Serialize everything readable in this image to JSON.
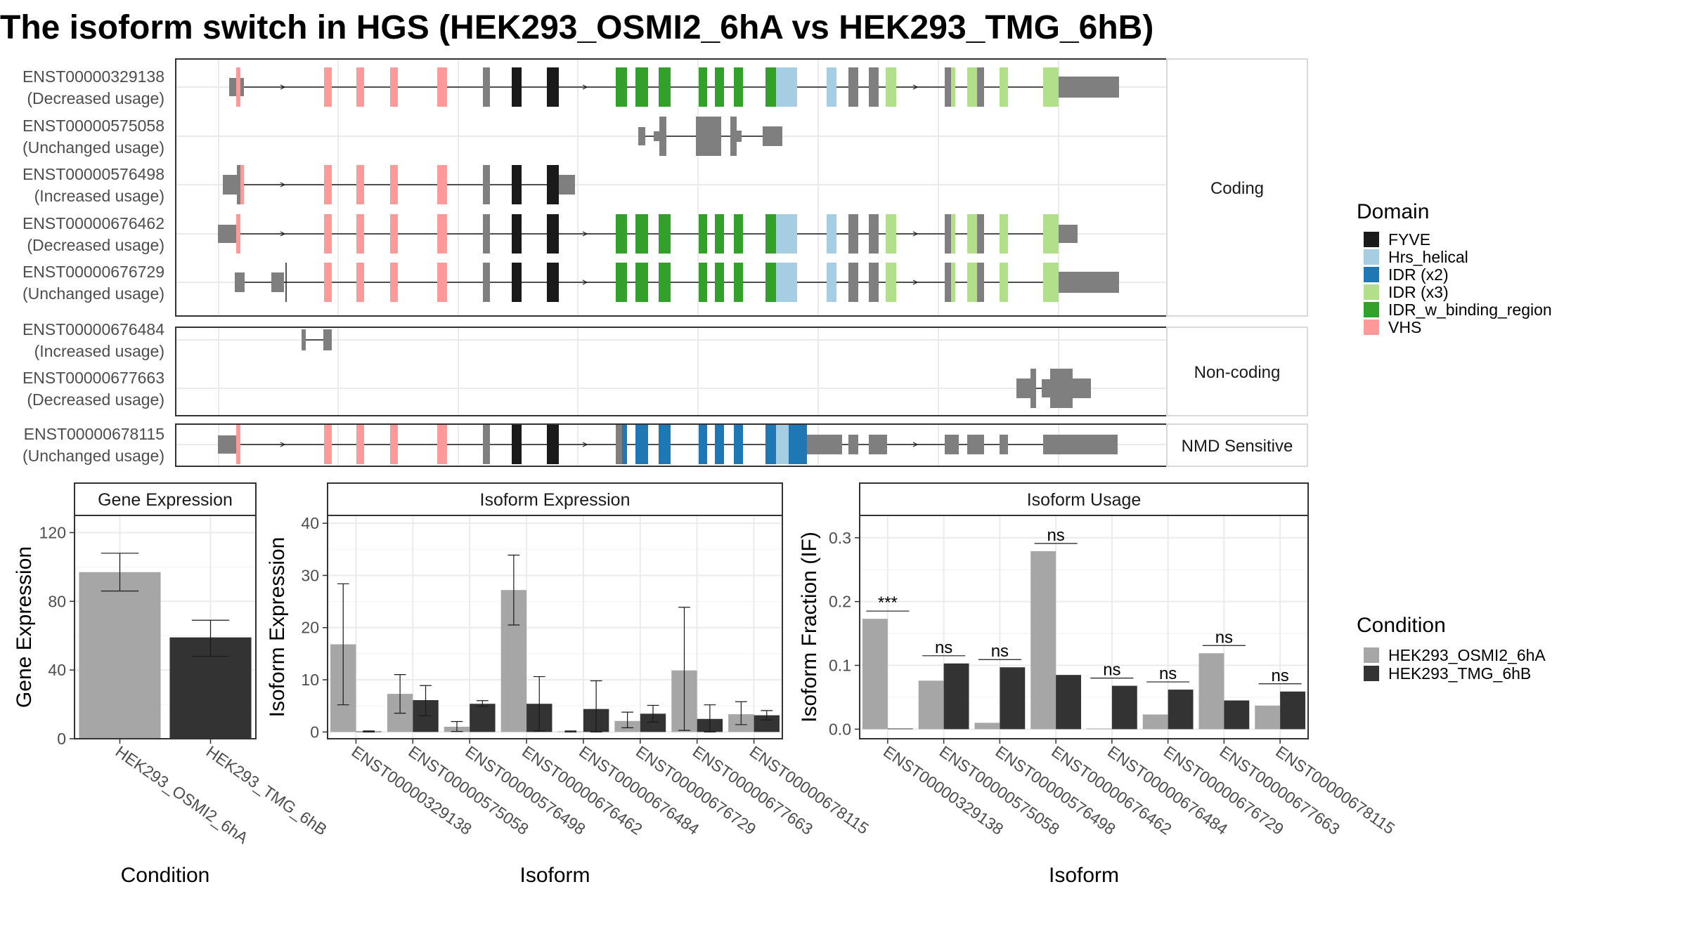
{
  "title": "The isoform switch in HGS (HEK293_OSMI2_6hA vs HEK293_TMG_6hB)",
  "structure": {
    "groups": [
      "Coding",
      "Non-coding",
      "NMD Sensitive"
    ],
    "isoforms": [
      {
        "id": "ENST00000329138",
        "usage": "(Decreased usage)",
        "group": 0
      },
      {
        "id": "ENST00000575058",
        "usage": "(Unchanged usage)",
        "group": 0
      },
      {
        "id": "ENST00000576498",
        "usage": "(Increased usage)",
        "group": 0
      },
      {
        "id": "ENST00000676462",
        "usage": "(Decreased usage)",
        "group": 0
      },
      {
        "id": "ENST00000676729",
        "usage": "(Unchanged usage)",
        "group": 0
      },
      {
        "id": "ENST00000676484",
        "usage": "(Increased usage)",
        "group": 1
      },
      {
        "id": "ENST00000677663",
        "usage": "(Decreased usage)",
        "group": 1
      },
      {
        "id": "ENST00000678115",
        "usage": "(Unchanged usage)",
        "group": 2
      }
    ],
    "domain_legend_title": "Domain",
    "domains": [
      {
        "name": "FYVE",
        "color": "#1a1a1a"
      },
      {
        "name": "Hrs_helical",
        "color": "#a6cee3"
      },
      {
        "name": "IDR (x2)",
        "color": "#1f78b4"
      },
      {
        "name": "IDR (x3)",
        "color": "#b2df8a"
      },
      {
        "name": "IDR_w_binding_region",
        "color": "#33a02c"
      },
      {
        "name": "VHS",
        "color": "#fb9a99"
      }
    ]
  },
  "condition_legend_title": "Condition",
  "conditions": [
    {
      "name": "HEK293_OSMI2_6hA",
      "color": "#a6a6a6"
    },
    {
      "name": "HEK293_TMG_6hB",
      "color": "#333333"
    }
  ],
  "chart_data": [
    {
      "type": "bar",
      "title": "Gene Expression",
      "xlabel": "Condition",
      "ylabel": "Gene Expression",
      "categories": [
        "HEK293_OSMI2_6hA",
        "HEK293_TMG_6hB"
      ],
      "values": [
        97,
        59
      ],
      "errors": [
        [
          86,
          108
        ],
        [
          48,
          69
        ]
      ],
      "ylim": [
        0,
        130
      ],
      "yticks": [
        0,
        40,
        80,
        120
      ]
    },
    {
      "type": "bar",
      "title": "Isoform Expression",
      "xlabel": "Isoform",
      "ylabel": "Isoform Expression",
      "categories": [
        "ENST00000329138",
        "ENST00000575058",
        "ENST00000576498",
        "ENST00000676462",
        "ENST00000676484",
        "ENST00000676729",
        "ENST00000677663",
        "ENST00000678115"
      ],
      "series": [
        {
          "name": "HEK293_OSMI2_6hA",
          "values": [
            16.8,
            7.3,
            1.0,
            27.2,
            0.1,
            2.1,
            11.8,
            3.4
          ],
          "errors": [
            [
              5.2,
              28.4
            ],
            [
              3.6,
              11.0
            ],
            [
              0.1,
              2.0
            ],
            [
              20.5,
              33.9
            ],
            [
              0.0,
              0.2
            ],
            [
              0.8,
              3.8
            ],
            [
              0.3,
              23.9
            ],
            [
              1.4,
              5.8
            ]
          ]
        },
        {
          "name": "HEK293_TMG_6hB",
          "values": [
            0.1,
            6.1,
            5.4,
            5.4,
            4.4,
            3.5,
            2.5,
            3.2
          ],
          "errors": [
            [
              0.0,
              0.2
            ],
            [
              3.1,
              8.9
            ],
            [
              4.9,
              6.0
            ],
            [
              0.2,
              10.6
            ],
            [
              0.0,
              9.8
            ],
            [
              1.9,
              5.1
            ],
            [
              0.0,
              5.2
            ],
            [
              2.3,
              4.1
            ]
          ]
        }
      ],
      "ylim": [
        -1.3,
        41.5
      ],
      "yticks": [
        0,
        10,
        20,
        30,
        40
      ]
    },
    {
      "type": "bar",
      "title": "Isoform Usage",
      "xlabel": "Isoform",
      "ylabel": "Isoform Fraction (IF)",
      "categories": [
        "ENST00000329138",
        "ENST00000575058",
        "ENST00000576498",
        "ENST00000676462",
        "ENST00000676484",
        "ENST00000676729",
        "ENST00000677663",
        "ENST00000678115"
      ],
      "series": [
        {
          "name": "HEK293_OSMI2_6hA",
          "values": [
            0.173,
            0.076,
            0.01,
            0.279,
            0.001,
            0.023,
            0.119,
            0.037
          ]
        },
        {
          "name": "HEK293_TMG_6hB",
          "values": [
            0.001,
            0.103,
            0.097,
            0.085,
            0.068,
            0.062,
            0.045,
            0.059
          ]
        }
      ],
      "significance": [
        "***",
        "ns",
        "ns",
        "ns",
        "ns",
        "ns",
        "ns",
        "ns"
      ],
      "ylim": [
        -0.015,
        0.335
      ],
      "yticks": [
        0.0,
        0.1,
        0.2,
        0.3
      ],
      "ytick_labels": [
        "0.0",
        "0.1",
        "0.2",
        "0.3"
      ]
    }
  ]
}
